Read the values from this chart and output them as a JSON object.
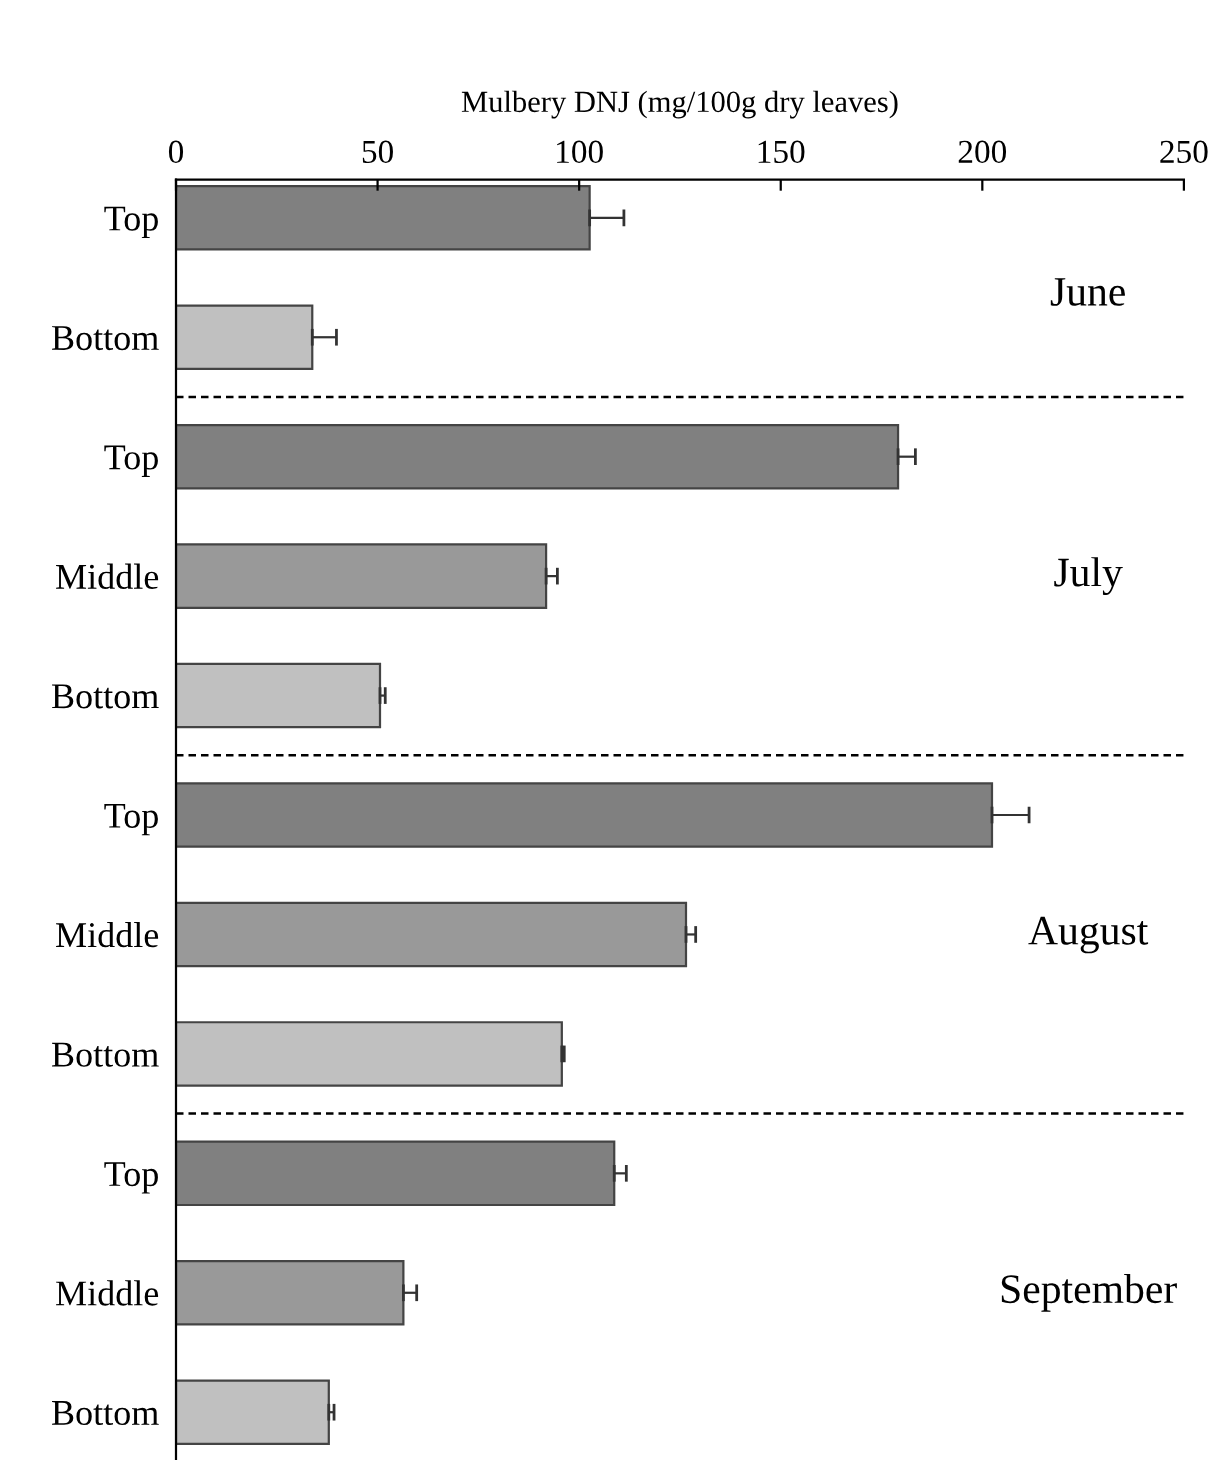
{
  "chart_data": {
    "type": "bar",
    "orientation": "horizontal",
    "xlabel": "Mulbery DNJ (mg/100g dry leaves)",
    "categories": [
      "Top",
      "Bottom",
      "Top",
      "Middle",
      "Bottom",
      "Top",
      "Middle",
      "Bottom",
      "Top",
      "Middle",
      "Bottom"
    ],
    "values": [
      102.6,
      33.8,
      179.1,
      91.8,
      50.6,
      202.4,
      126.5,
      95.7,
      108.7,
      56.4,
      37.9
    ],
    "errors": [
      8.5,
      6,
      4.3,
      2.8,
      1.3,
      9.2,
      2.4,
      0.6,
      3,
      3.3,
      1.3
    ],
    "colors": [
      "#808080",
      "#c0c0c0",
      "#808080",
      "#999999",
      "#c0c0c0",
      "#808080",
      "#999999",
      "#c0c0c0",
      "#808080",
      "#999999",
      "#c0c0c0"
    ],
    "xlim": [
      0,
      250
    ],
    "xticks": [
      0,
      50,
      100,
      150,
      200,
      250
    ],
    "annotations": [
      "June",
      "July",
      "August",
      "September"
    ]
  }
}
